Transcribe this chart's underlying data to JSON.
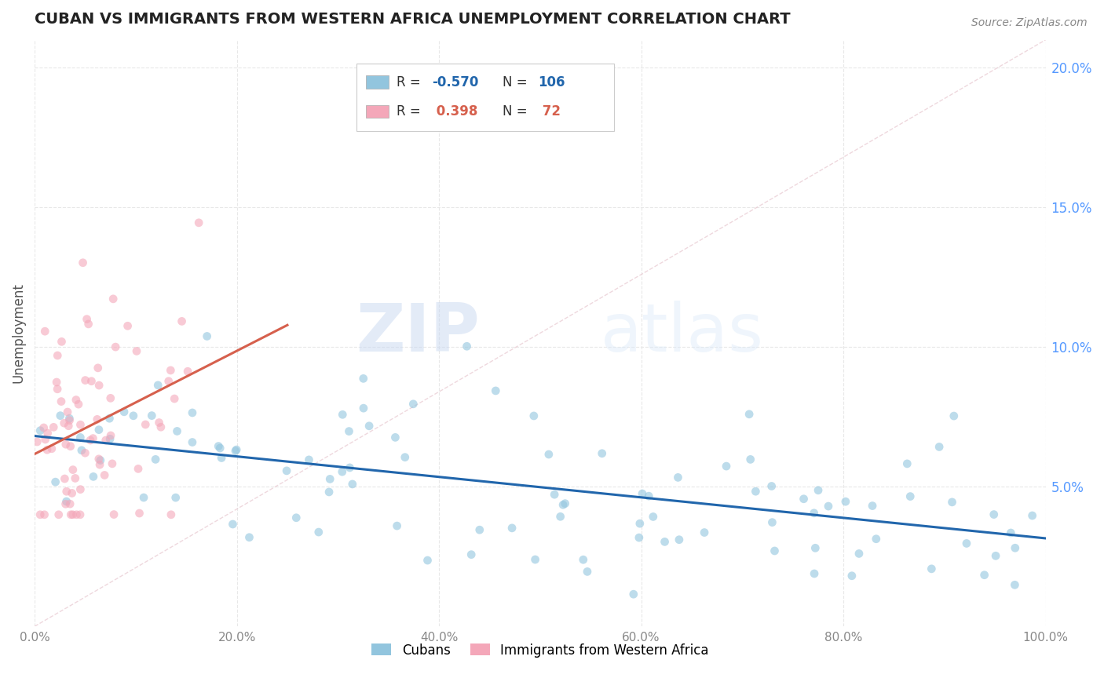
{
  "title": "CUBAN VS IMMIGRANTS FROM WESTERN AFRICA UNEMPLOYMENT CORRELATION CHART",
  "source_text": "Source: ZipAtlas.com",
  "watermark_zip": "ZIP",
  "watermark_atlas": "atlas",
  "xlabel": "",
  "ylabel": "Unemployment",
  "xlim": [
    0.0,
    1.0
  ],
  "ylim": [
    0.0,
    0.21
  ],
  "xticks": [
    0.0,
    0.2,
    0.4,
    0.6,
    0.8,
    1.0
  ],
  "xtick_labels": [
    "0.0%",
    "20.0%",
    "40.0%",
    "60.0%",
    "80.0%",
    "100.0%"
  ],
  "yticks": [
    0.05,
    0.1,
    0.15,
    0.2
  ],
  "ytick_labels": [
    "5.0%",
    "10.0%",
    "15.0%",
    "20.0%"
  ],
  "blue_color": "#92c5de",
  "pink_color": "#f4a7b9",
  "blue_line_color": "#2166ac",
  "pink_line_color": "#d6604d",
  "diag_line_color": "#e8c8d0",
  "legend_r_blue": "-0.570",
  "legend_n_blue": "106",
  "legend_r_pink": "0.398",
  "legend_n_pink": "72",
  "legend_label_blue": "Cubans",
  "legend_label_pink": "Immigrants from Western Africa",
  "title_color": "#222222",
  "axis_label_color": "#555555",
  "tick_color": "#888888",
  "grid_color": "#e8e8e8",
  "background_color": "#ffffff",
  "right_tick_color": "#5599ff"
}
